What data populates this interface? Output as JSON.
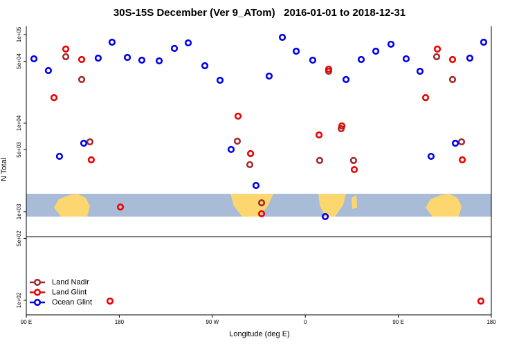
{
  "chart_data": {
    "type": "scatter",
    "title": "30S-15S December (Ver 9_ATom)   2016-01-01 to 2018-12-31",
    "x_label": "Longitude (deg E)",
    "y_label": "N Total",
    "xlim": [
      90,
      540
    ],
    "ylim": [
      68.5,
      124000
    ],
    "log_y": true,
    "legend": "bottom-left",
    "xticks": [
      {
        "value": 90,
        "label": "90 E"
      },
      {
        "value": 180,
        "label": "180"
      },
      {
        "value": 270,
        "label": "90 W"
      },
      {
        "value": 360,
        "label": "0"
      },
      {
        "value": 450,
        "label": "90 E"
      },
      {
        "value": 540,
        "label": "180"
      }
    ],
    "yticks": [
      {
        "value": 100000,
        "label": "1e+05"
      },
      {
        "value": 50000,
        "label": "5e+04"
      },
      {
        "value": 10000,
        "label": "1e+04"
      },
      {
        "value": 5000,
        "label": "5e+03"
      },
      {
        "value": 1000,
        "label": "1e+03"
      },
      {
        "value": 500,
        "label": "5e+02"
      },
      {
        "value": 100,
        "label": "1e+02"
      }
    ],
    "series": [
      {
        "name": "Land Nadir",
        "color": "#a52a2a",
        "x": [
          128.2,
          143.6,
          151.6,
          294.2,
          306.3,
          317.7,
          373.9,
          382.6,
          394.7,
          406.7,
          487.1,
          502.5,
          511.2
        ],
        "values": [
          56200,
          31100,
          6150,
          6260,
          3400,
          1260,
          3790,
          38500,
          8650,
          3790,
          56200,
          31100,
          6150
        ]
      },
      {
        "name": "Land Glint",
        "color": "#ee0000",
        "x": [
          116.8,
          128.2,
          143.6,
          152.9,
          181.1,
          294.9,
          307.0,
          317.7,
          373.3,
          382.6,
          395.4,
          407.4,
          476.4,
          487.8,
          502.5,
          511.9,
          171.0,
          529.9
        ],
        "values": [
          19400,
          68600,
          52300,
          3850,
          1130,
          12000,
          4530,
          948,
          7360,
          40700,
          9310,
          2990,
          19400,
          68600,
          52300,
          3850,
          98,
          98
        ]
      },
      {
        "name": "Ocean Glint",
        "color": "#0000ee",
        "x": [
          97.4,
          111.4,
          122.1,
          145.6,
          159.6,
          173.0,
          187.8,
          201.8,
          218.6,
          233.3,
          246.7,
          262.8,
          277.5,
          288.2,
          312.3,
          325.0,
          337.8,
          351.2,
          367.2,
          379.3,
          399.4,
          414.1,
          428.2,
          442.9,
          457.6,
          471.0,
          481.7,
          505.2,
          519.2,
          532.6
        ],
        "values": [
          53300,
          39200,
          4220,
          5930,
          54200,
          82000,
          55200,
          51400,
          50500,
          69800,
          80600,
          44500,
          30500,
          5050,
          1980,
          34000,
          93000,
          64900,
          51400,
          881,
          31100,
          52300,
          64900,
          77800,
          53300,
          38500,
          4220,
          5930,
          54200,
          82000
        ]
      }
    ]
  }
}
